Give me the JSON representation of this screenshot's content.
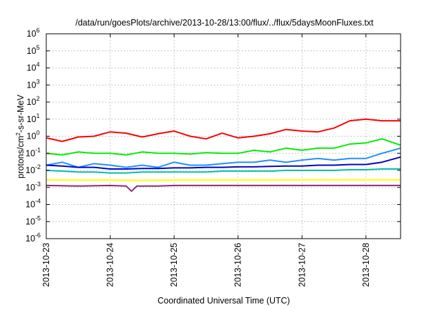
{
  "chart_data": {
    "type": "line",
    "title": "/data/run/goesPlots/archive/2013-10-28/13:00/flux/../flux/5daysMoonFluxes.txt",
    "xlabel": "Coordinated Universal Time (UTC)",
    "ylabel": "protons/cm²-s-sr-MeV",
    "ylabel_parts": {
      "pre": "protons/cm",
      "sup": "2",
      "post": "-s-sr-MeV"
    },
    "y_scale": "log",
    "ylim": [
      1e-06,
      1000000
    ],
    "y_ticks": [
      {
        "exp": -6,
        "label": "10",
        "sup": "-6"
      },
      {
        "exp": -5,
        "label": "10",
        "sup": "-5"
      },
      {
        "exp": -4,
        "label": "10",
        "sup": "-4"
      },
      {
        "exp": -3,
        "label": "10",
        "sup": "-3"
      },
      {
        "exp": -2,
        "label": "10",
        "sup": "-2"
      },
      {
        "exp": -1,
        "label": "10",
        "sup": "-1"
      },
      {
        "exp": 0,
        "label": "10",
        "sup": "0"
      },
      {
        "exp": 1,
        "label": "10",
        "sup": "1"
      },
      {
        "exp": 2,
        "label": "10",
        "sup": "2"
      },
      {
        "exp": 3,
        "label": "10",
        "sup": "3"
      },
      {
        "exp": 4,
        "label": "10",
        "sup": "4"
      },
      {
        "exp": 5,
        "label": "10",
        "sup": "5"
      },
      {
        "exp": 6,
        "label": "10",
        "sup": "6"
      }
    ],
    "x_range_days": [
      "2013-10-23",
      "2013-10-28T13:00"
    ],
    "x_ticks": [
      "2013-10-23",
      "2013-10-24",
      "2013-10-25",
      "2013-10-26",
      "2013-10-27",
      "2013-10-28"
    ],
    "grid": true,
    "legend": "none",
    "series": [
      {
        "color": "#ff0000",
        "points": [
          [
            "2013-10-23T00:00",
            0.8
          ],
          [
            "2013-10-23T06:00",
            0.5
          ],
          [
            "2013-10-23T12:00",
            0.9
          ],
          [
            "2013-10-23T18:00",
            1.0
          ],
          [
            "2013-10-24T00:00",
            1.8
          ],
          [
            "2013-10-24T06:00",
            1.5
          ],
          [
            "2013-10-24T12:00",
            0.9
          ],
          [
            "2013-10-24T18:00",
            1.4
          ],
          [
            "2013-10-25T00:00",
            2.0
          ],
          [
            "2013-10-25T06:00",
            1.0
          ],
          [
            "2013-10-25T12:00",
            0.7
          ],
          [
            "2013-10-25T18:00",
            1.5
          ],
          [
            "2013-10-26T00:00",
            0.8
          ],
          [
            "2013-10-26T06:00",
            1.0
          ],
          [
            "2013-10-26T12:00",
            1.4
          ],
          [
            "2013-10-26T18:00",
            2.5
          ],
          [
            "2013-10-27T00:00",
            2.0
          ],
          [
            "2013-10-27T06:00",
            1.8
          ],
          [
            "2013-10-27T12:00",
            3.0
          ],
          [
            "2013-10-27T18:00",
            8.0
          ],
          [
            "2013-10-28T00:00",
            10.0
          ],
          [
            "2013-10-28T06:00",
            8.0
          ],
          [
            "2013-10-28T13:00",
            8.0
          ]
        ]
      },
      {
        "color": "#00ee00",
        "points": [
          [
            "2013-10-23T00:00",
            0.1
          ],
          [
            "2013-10-23T06:00",
            0.08
          ],
          [
            "2013-10-23T12:00",
            0.12
          ],
          [
            "2013-10-23T18:00",
            0.1
          ],
          [
            "2013-10-24T00:00",
            0.1
          ],
          [
            "2013-10-24T06:00",
            0.08
          ],
          [
            "2013-10-24T12:00",
            0.12
          ],
          [
            "2013-10-24T18:00",
            0.1
          ],
          [
            "2013-10-25T00:00",
            0.1
          ],
          [
            "2013-10-25T06:00",
            0.09
          ],
          [
            "2013-10-25T12:00",
            0.11
          ],
          [
            "2013-10-25T18:00",
            0.1
          ],
          [
            "2013-10-26T00:00",
            0.1
          ],
          [
            "2013-10-26T06:00",
            0.15
          ],
          [
            "2013-10-26T12:00",
            0.12
          ],
          [
            "2013-10-26T18:00",
            0.2
          ],
          [
            "2013-10-27T00:00",
            0.15
          ],
          [
            "2013-10-27T06:00",
            0.2
          ],
          [
            "2013-10-27T12:00",
            0.2
          ],
          [
            "2013-10-27T18:00",
            0.35
          ],
          [
            "2013-10-28T00:00",
            0.4
          ],
          [
            "2013-10-28T06:00",
            0.7
          ],
          [
            "2013-10-28T13:00",
            0.3
          ]
        ]
      },
      {
        "color": "#1e90ff",
        "points": [
          [
            "2013-10-23T00:00",
            0.02
          ],
          [
            "2013-10-23T06:00",
            0.03
          ],
          [
            "2013-10-23T12:00",
            0.015
          ],
          [
            "2013-10-23T18:00",
            0.025
          ],
          [
            "2013-10-24T00:00",
            0.02
          ],
          [
            "2013-10-24T06:00",
            0.015
          ],
          [
            "2013-10-24T12:00",
            0.02
          ],
          [
            "2013-10-24T18:00",
            0.015
          ],
          [
            "2013-10-25T00:00",
            0.03
          ],
          [
            "2013-10-25T06:00",
            0.02
          ],
          [
            "2013-10-25T12:00",
            0.02
          ],
          [
            "2013-10-25T18:00",
            0.025
          ],
          [
            "2013-10-26T00:00",
            0.03
          ],
          [
            "2013-10-26T06:00",
            0.03
          ],
          [
            "2013-10-26T12:00",
            0.04
          ],
          [
            "2013-10-26T18:00",
            0.03
          ],
          [
            "2013-10-27T00:00",
            0.04
          ],
          [
            "2013-10-27T06:00",
            0.05
          ],
          [
            "2013-10-27T12:00",
            0.04
          ],
          [
            "2013-10-27T18:00",
            0.05
          ],
          [
            "2013-10-28T00:00",
            0.05
          ],
          [
            "2013-10-28T06:00",
            0.1
          ],
          [
            "2013-10-28T13:00",
            0.2
          ]
        ]
      },
      {
        "color": "#0000cd",
        "points": [
          [
            "2013-10-23T00:00",
            0.02
          ],
          [
            "2013-10-23T06:00",
            0.018
          ],
          [
            "2013-10-23T12:00",
            0.015
          ],
          [
            "2013-10-23T18:00",
            0.015
          ],
          [
            "2013-10-24T00:00",
            0.012
          ],
          [
            "2013-10-24T06:00",
            0.012
          ],
          [
            "2013-10-24T12:00",
            0.013
          ],
          [
            "2013-10-24T18:00",
            0.013
          ],
          [
            "2013-10-25T00:00",
            0.014
          ],
          [
            "2013-10-25T06:00",
            0.014
          ],
          [
            "2013-10-25T12:00",
            0.015
          ],
          [
            "2013-10-25T18:00",
            0.015
          ],
          [
            "2013-10-26T00:00",
            0.016
          ],
          [
            "2013-10-26T06:00",
            0.016
          ],
          [
            "2013-10-26T12:00",
            0.017
          ],
          [
            "2013-10-26T18:00",
            0.018
          ],
          [
            "2013-10-27T00:00",
            0.018
          ],
          [
            "2013-10-27T06:00",
            0.02
          ],
          [
            "2013-10-27T12:00",
            0.02
          ],
          [
            "2013-10-27T18:00",
            0.022
          ],
          [
            "2013-10-28T00:00",
            0.022
          ],
          [
            "2013-10-28T06:00",
            0.03
          ],
          [
            "2013-10-28T13:00",
            0.06
          ]
        ]
      },
      {
        "color": "#00bfa5",
        "points": [
          [
            "2013-10-23T00:00",
            0.01
          ],
          [
            "2013-10-23T06:00",
            0.009
          ],
          [
            "2013-10-23T12:00",
            0.008
          ],
          [
            "2013-10-23T18:00",
            0.008
          ],
          [
            "2013-10-24T00:00",
            0.007
          ],
          [
            "2013-10-24T06:00",
            0.007
          ],
          [
            "2013-10-24T12:00",
            0.008
          ],
          [
            "2013-10-24T18:00",
            0.008
          ],
          [
            "2013-10-25T00:00",
            0.008
          ],
          [
            "2013-10-25T06:00",
            0.008
          ],
          [
            "2013-10-25T12:00",
            0.008
          ],
          [
            "2013-10-25T18:00",
            0.009
          ],
          [
            "2013-10-26T00:00",
            0.009
          ],
          [
            "2013-10-26T06:00",
            0.009
          ],
          [
            "2013-10-26T12:00",
            0.009
          ],
          [
            "2013-10-26T18:00",
            0.01
          ],
          [
            "2013-10-27T00:00",
            0.01
          ],
          [
            "2013-10-27T06:00",
            0.01
          ],
          [
            "2013-10-27T12:00",
            0.01
          ],
          [
            "2013-10-27T18:00",
            0.011
          ],
          [
            "2013-10-28T00:00",
            0.011
          ],
          [
            "2013-10-28T06:00",
            0.012
          ],
          [
            "2013-10-28T13:00",
            0.012
          ]
        ]
      },
      {
        "color": "#ffff00",
        "points": [
          [
            "2013-10-23T00:00",
            0.0028
          ],
          [
            "2013-10-23T12:00",
            0.0027
          ],
          [
            "2013-10-24T00:00",
            0.0027
          ],
          [
            "2013-10-24T12:00",
            0.0026
          ],
          [
            "2013-10-25T00:00",
            0.0027
          ],
          [
            "2013-10-25T12:00",
            0.0027
          ],
          [
            "2013-10-26T00:00",
            0.0027
          ],
          [
            "2013-10-26T12:00",
            0.0027
          ],
          [
            "2013-10-27T00:00",
            0.0028
          ],
          [
            "2013-10-27T12:00",
            0.0028
          ],
          [
            "2013-10-28T00:00",
            0.0028
          ],
          [
            "2013-10-28T13:00",
            0.0028
          ]
        ]
      },
      {
        "color": "#8b2a7a",
        "points": [
          [
            "2013-10-23T00:00",
            0.0013
          ],
          [
            "2013-10-23T12:00",
            0.0012
          ],
          [
            "2013-10-24T00:00",
            0.0013
          ],
          [
            "2013-10-24T06:00",
            0.0012
          ],
          [
            "2013-10-24T08:00",
            0.0006
          ],
          [
            "2013-10-24T10:00",
            0.0012
          ],
          [
            "2013-10-24T18:00",
            0.0012
          ],
          [
            "2013-10-25T00:00",
            0.0013
          ],
          [
            "2013-10-25T12:00",
            0.0013
          ],
          [
            "2013-10-26T00:00",
            0.0013
          ],
          [
            "2013-10-26T12:00",
            0.0013
          ],
          [
            "2013-10-27T00:00",
            0.0013
          ],
          [
            "2013-10-27T12:00",
            0.0013
          ],
          [
            "2013-10-28T00:00",
            0.0013
          ],
          [
            "2013-10-28T13:00",
            0.0013
          ]
        ]
      }
    ]
  }
}
